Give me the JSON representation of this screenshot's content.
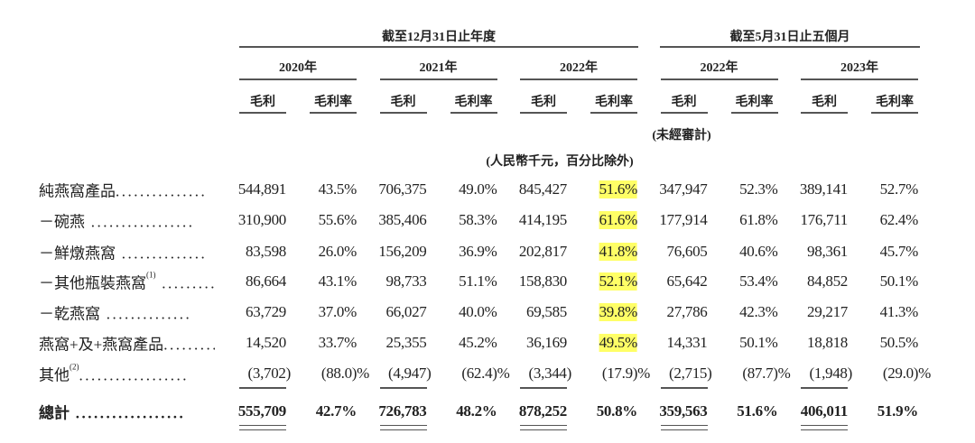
{
  "header": {
    "period_annual": "截至12月31日止年度",
    "period_five_months": "截至5月31日止五個月",
    "years": [
      "2020年",
      "2021年",
      "2022年",
      "2022年",
      "2023年"
    ],
    "col_gross_profit": "毛利",
    "col_gross_margin": "毛利率",
    "unaudited": "(未經審計)",
    "unit_note": "(人民幣千元，百分比除外)"
  },
  "highlight_color": "#ffff66",
  "rows": [
    {
      "label": "純燕窩產品",
      "sup": "",
      "dots": "...............",
      "values": [
        "544,891",
        "43.5%",
        "706,375",
        "49.0%",
        "845,427",
        "51.6%",
        "347,947",
        "52.3%",
        "389,141",
        "52.7%"
      ],
      "highlight_2022_margin": true
    },
    {
      "label": "－碗燕",
      "sup": "",
      "dots": " .................",
      "values": [
        "310,900",
        "55.6%",
        "385,406",
        "58.3%",
        "414,195",
        "61.6%",
        "177,914",
        "61.8%",
        "176,711",
        "62.4%"
      ],
      "highlight_2022_margin": true
    },
    {
      "label": "－鮮燉燕窩",
      "sup": "",
      "dots": " ..............",
      "values": [
        "83,598",
        "26.0%",
        "156,209",
        "36.9%",
        "202,817",
        "41.8%",
        "76,605",
        "40.6%",
        "98,361",
        "45.7%"
      ],
      "highlight_2022_margin": true
    },
    {
      "label": "－其他瓶裝燕窩",
      "sup": "(1)",
      "dots": " .........",
      "values": [
        "86,664",
        "43.1%",
        "98,733",
        "51.1%",
        "158,830",
        "52.1%",
        "65,642",
        "53.4%",
        "84,852",
        "50.1%"
      ],
      "highlight_2022_margin": true
    },
    {
      "label": "－乾燕窩",
      "sup": "",
      "dots": " ..............",
      "values": [
        "63,729",
        "37.0%",
        "66,027",
        "40.0%",
        "69,585",
        "39.8%",
        "27,786",
        "42.3%",
        "29,217",
        "41.3%"
      ],
      "highlight_2022_margin": true
    },
    {
      "label": "燕窩+及+燕窩產品",
      "sup": "",
      "dots": ".........",
      "values": [
        "14,520",
        "33.7%",
        "25,355",
        "45.2%",
        "36,169",
        "49.5%",
        "14,331",
        "50.1%",
        "18,818",
        "50.5%"
      ],
      "highlight_2022_margin": true
    },
    {
      "label": "其他",
      "sup": "(2)",
      "dots": "..................",
      "values": [
        "(3,702)",
        "(88.0)%",
        "(4,947)",
        "(62.4)%",
        "(3,344)",
        "(17.9)%",
        "(2,715)",
        "(87.7)%",
        "(1,948)",
        "(29.0)%"
      ],
      "highlight_2022_margin": false
    },
    {
      "label": "總計",
      "sup": "",
      "dots": " ..................",
      "values": [
        "555,709",
        "42.7%",
        "726,783",
        "48.2%",
        "878,252",
        "50.8%",
        "359,563",
        "51.6%",
        "406,011",
        "51.9%"
      ],
      "highlight_2022_margin": false,
      "total": true
    }
  ]
}
